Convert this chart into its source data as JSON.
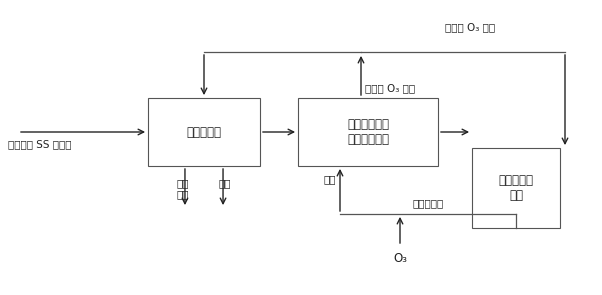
{
  "title_top": "含残余 O₃ 尾气",
  "box1_label": "活性炭吸附",
  "box2_label": "活性炭脱附和\n臭氧氧化降解",
  "box3_label": "丙酮水溶液\n储罐",
  "label_input": "经预处理 SS 的废水",
  "label_tailgas1": "达标\n尾气",
  "label_effluent": "出水",
  "label_desorption": "脱附",
  "label_acetone_flow": "丙酮水溶液",
  "label_o3": "O₃",
  "label_ozone_gas": "含残余 O₃ 尾气",
  "bg_color": "#ffffff",
  "box_edge_color": "#555555",
  "arrow_color": "#222222",
  "text_color": "#222222",
  "line_color": "#555555",
  "font_size": 8.5,
  "small_font_size": 7.5
}
